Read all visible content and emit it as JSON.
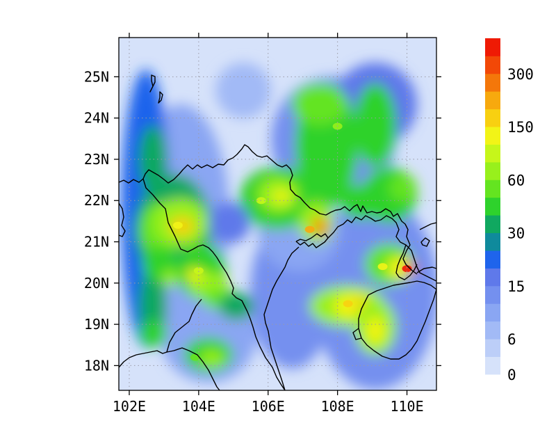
{
  "chart_data": {
    "type": "heatmap",
    "title": "",
    "xlabel": "",
    "ylabel": "",
    "x_ticks": [
      "102E",
      "104E",
      "106E",
      "108E",
      "110E"
    ],
    "y_ticks": [
      "18N",
      "19N",
      "20N",
      "21N",
      "22N",
      "23N",
      "24N",
      "25N"
    ],
    "xlim": [
      101.7,
      110.85
    ],
    "ylim": [
      17.4,
      25.95
    ],
    "grid": true,
    "colorbar": {
      "position": "right",
      "labels": [
        "0",
        "6",
        "15",
        "30",
        "60",
        "150",
        "300"
      ],
      "levels": [
        0,
        3,
        6,
        9,
        12,
        15,
        20,
        25,
        30,
        40,
        50,
        60,
        80,
        100,
        150,
        200,
        250,
        300
      ],
      "colors": [
        "#d6e2fa",
        "#bccef8",
        "#a2baf6",
        "#8aa6f3",
        "#7490ef",
        "#5f79ea",
        "#1f64ec",
        "#0f8a9c",
        "#10a860",
        "#2ed22c",
        "#64e420",
        "#98f01c",
        "#c6f61a",
        "#f2f417",
        "#f8d011",
        "#f7a90e",
        "#f4770a",
        "#f24807",
        "#ef1a04"
      ]
    },
    "rainfall_maxima": [
      {
        "lon": 110.0,
        "lat": 20.35,
        "value": 300
      },
      {
        "lon": 107.2,
        "lat": 21.3,
        "value": 150
      },
      {
        "lon": 108.3,
        "lat": 19.5,
        "value": 100
      },
      {
        "lon": 103.4,
        "lat": 21.4,
        "value": 80
      },
      {
        "lon": 109.3,
        "lat": 20.4,
        "value": 90
      },
      {
        "lon": 108.0,
        "lat": 23.8,
        "value": 50
      },
      {
        "lon": 105.8,
        "lat": 22.0,
        "value": 60
      },
      {
        "lon": 104.0,
        "lat": 20.3,
        "value": 60
      },
      {
        "lon": 103.9,
        "lat": 18.2,
        "value": 40
      }
    ]
  }
}
